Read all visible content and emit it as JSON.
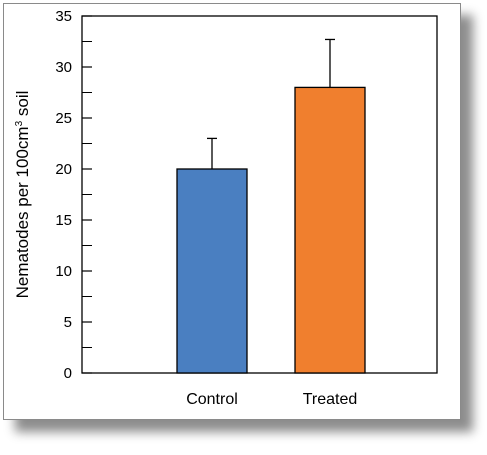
{
  "chart_data": {
    "type": "bar",
    "categories": [
      "Control",
      "Treated"
    ],
    "values": [
      20,
      28
    ],
    "error_upper": [
      23,
      32.7
    ],
    "colors": [
      "#4a7fc1",
      "#f07f2e"
    ],
    "ylabel": "Nematodes per 100cm",
    "ylabel_superscript": "3",
    "ylabel_suffix": " soil",
    "ylim": [
      0,
      35
    ],
    "yticks": [
      0,
      5,
      10,
      15,
      20,
      25,
      30,
      35
    ],
    "ytick_labels": [
      "0",
      "5",
      "10",
      "15",
      "20",
      "25",
      "30",
      "35"
    ],
    "minor_tick_step": 2.5,
    "grid": false
  }
}
